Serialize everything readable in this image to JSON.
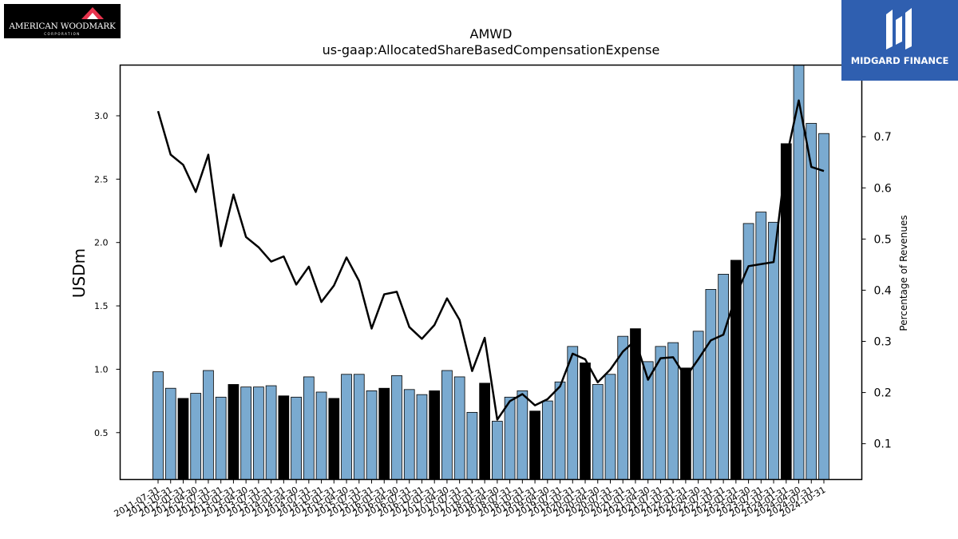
{
  "company_logo": {
    "name": "AMERICAN WOODMARK",
    "sub": "CORPORATION"
  },
  "brand_logo": {
    "name": "MIDGARD FINANCE"
  },
  "chart_data": {
    "type": "bar",
    "title": "AMWD",
    "subtitle": "us-gaap:AllocatedShareBasedCompensationExpense",
    "ylabel": "USDm",
    "y2label": "Percentage of Revenues",
    "ylim": [
      0.13,
      3.4
    ],
    "y2lim": [
      0.03,
      0.84
    ],
    "yticks": [
      0.5,
      1.0,
      1.5,
      2.0,
      2.5,
      3.0
    ],
    "y2ticks": [
      0.1,
      0.2,
      0.3,
      0.4,
      0.5,
      0.6,
      0.7
    ],
    "colors": {
      "bar": "#7aaad0",
      "bar_highlight": "#000000",
      "line": "#000000"
    },
    "categories": [
      "2011-07-31",
      "2011-10-31",
      "2012-01-31",
      "2012-04-30",
      "2012-07-31",
      "2012-10-31",
      "2013-01-31",
      "2013-04-30",
      "2013-07-31",
      "2013-10-31",
      "2014-01-31",
      "2014-04-30",
      "2014-07-31",
      "2014-10-31",
      "2015-01-31",
      "2015-04-30",
      "2015-07-31",
      "2015-10-31",
      "2016-01-31",
      "2016-04-30",
      "2016-07-31",
      "2016-10-31",
      "2017-01-31",
      "2017-04-30",
      "2017-07-31",
      "2017-10-31",
      "2018-01-31",
      "2018-04-30",
      "2018-07-31",
      "2018-10-31",
      "2019-01-31",
      "2019-04-30",
      "2019-07-31",
      "2019-10-31",
      "2020-01-31",
      "2020-04-30",
      "2020-07-31",
      "2020-10-31",
      "2021-01-31",
      "2021-04-30",
      "2021-07-31",
      "2021-10-31",
      "2022-01-31",
      "2022-04-30",
      "2022-07-31",
      "2022-10-31",
      "2023-01-31",
      "2023-04-30",
      "2023-07-31",
      "2023-10-31",
      "2024-01-31",
      "2024-04-30",
      "2024-07-31",
      "2024-10-31"
    ],
    "values": [
      0.98,
      0.85,
      0.77,
      0.81,
      0.99,
      0.78,
      0.88,
      0.86,
      0.86,
      0.87,
      0.79,
      0.78,
      0.94,
      0.82,
      0.77,
      0.96,
      0.96,
      0.83,
      0.85,
      0.95,
      0.84,
      0.8,
      0.83,
      0.99,
      0.94,
      0.66,
      0.89,
      0.59,
      0.78,
      0.83,
      0.67,
      0.75,
      0.9,
      1.18,
      1.05,
      0.88,
      0.96,
      1.26,
      1.32,
      1.06,
      1.18,
      1.21,
      1.01,
      1.3,
      1.63,
      1.75,
      1.86,
      2.15,
      2.24,
      2.16,
      2.78,
      3.4,
      2.94,
      2.86
    ],
    "highlight": [
      false,
      false,
      true,
      false,
      false,
      false,
      true,
      false,
      false,
      false,
      true,
      false,
      false,
      false,
      true,
      false,
      false,
      false,
      true,
      false,
      false,
      false,
      true,
      false,
      false,
      false,
      true,
      false,
      false,
      false,
      true,
      false,
      false,
      false,
      true,
      false,
      false,
      false,
      true,
      false,
      false,
      false,
      true,
      false,
      false,
      false,
      true,
      false,
      false,
      false,
      true,
      false,
      false,
      false
    ],
    "line_series": {
      "values": [
        0.75,
        0.665,
        0.645,
        0.592,
        0.665,
        0.486,
        0.587,
        0.504,
        0.484,
        0.456,
        0.466,
        0.411,
        0.446,
        0.377,
        0.409,
        0.464,
        0.418,
        0.325,
        0.392,
        0.397,
        0.328,
        0.305,
        0.332,
        0.384,
        0.342,
        0.242,
        0.307,
        0.147,
        0.183,
        0.197,
        0.175,
        0.187,
        0.212,
        0.276,
        0.265,
        0.22,
        0.245,
        0.28,
        0.302,
        0.225,
        0.267,
        0.269,
        0.23,
        0.265,
        0.302,
        0.313,
        0.39,
        0.447,
        0.451,
        0.455,
        0.657,
        0.771,
        0.641,
        0.633
      ]
    }
  }
}
